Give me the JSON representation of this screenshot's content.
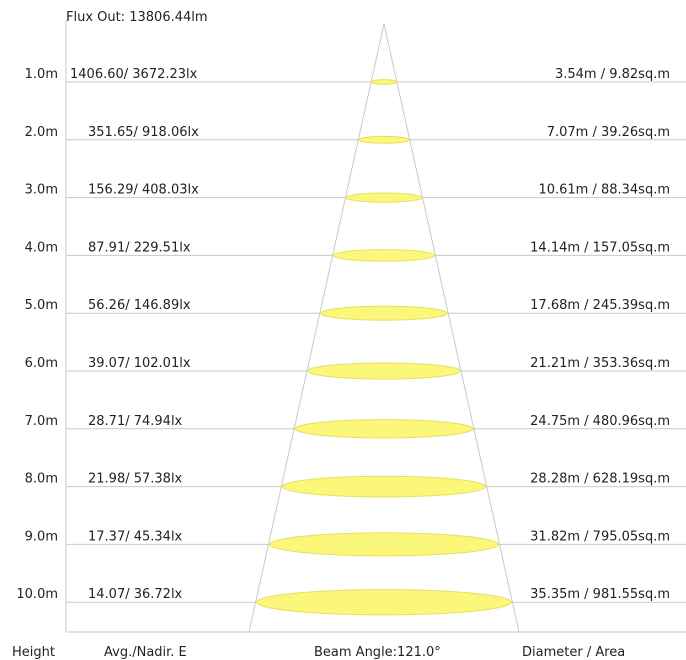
{
  "flux_out": "Flux Out: 13806.44lm",
  "rows": [
    {
      "height": "1.0m",
      "illuminance": "1406.60/ 3672.23lx",
      "diameter_area": "3.54m / 9.82sq.m",
      "diameter_m": 3.54
    },
    {
      "height": "2.0m",
      "illuminance": "351.65/ 918.06lx",
      "diameter_area": "7.07m / 39.26sq.m",
      "diameter_m": 7.07
    },
    {
      "height": "3.0m",
      "illuminance": "156.29/ 408.03lx",
      "diameter_area": "10.61m / 88.34sq.m",
      "diameter_m": 10.61
    },
    {
      "height": "4.0m",
      "illuminance": "87.91/ 229.51lx",
      "diameter_area": "14.14m / 157.05sq.m",
      "diameter_m": 14.14
    },
    {
      "height": "5.0m",
      "illuminance": "56.26/ 146.89lx",
      "diameter_area": "17.68m / 245.39sq.m",
      "diameter_m": 17.68
    },
    {
      "height": "6.0m",
      "illuminance": "39.07/ 102.01lx",
      "diameter_area": "21.21m / 353.36sq.m",
      "diameter_m": 21.21
    },
    {
      "height": "7.0m",
      "illuminance": "28.71/ 74.94lx",
      "diameter_area": "24.75m / 480.96sq.m",
      "diameter_m": 24.75
    },
    {
      "height": "8.0m",
      "illuminance": "21.98/ 57.38lx",
      "diameter_area": "28.28m / 628.19sq.m",
      "diameter_m": 28.28
    },
    {
      "height": "9.0m",
      "illuminance": "17.37/ 45.34lx",
      "diameter_area": "31.82m / 795.05sq.m",
      "diameter_m": 31.82
    },
    {
      "height": "10.0m",
      "illuminance": "14.07/ 36.72lx",
      "diameter_area": "35.35m / 981.55sq.m",
      "diameter_m": 35.35
    }
  ],
  "footer": {
    "height": "Height",
    "illuminance": "Avg./Nadir. E",
    "beam_angle": "Beam Angle:121.0°",
    "diameter_area": "Diameter / Area"
  },
  "colors": {
    "spot_fill": "#fbf77a",
    "spot_stroke": "#e6e060",
    "line": "#c9c9c9",
    "text": "#222222"
  }
}
